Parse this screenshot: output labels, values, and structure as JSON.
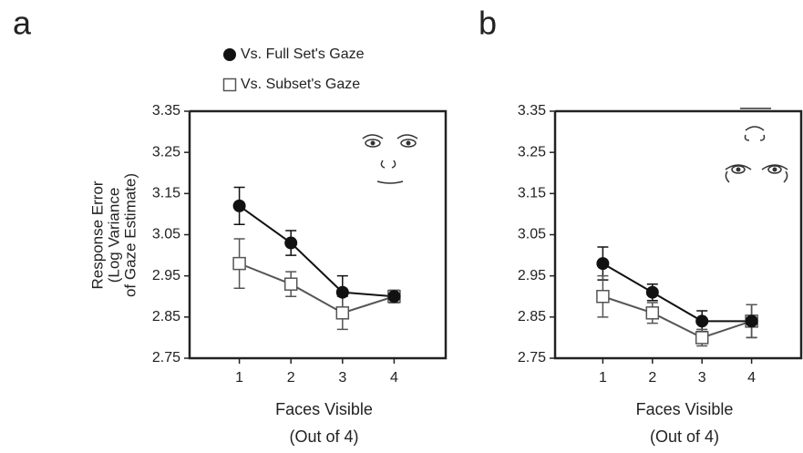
{
  "chart_data": [
    {
      "type": "line",
      "title": "a",
      "ylabel": [
        "Response Error",
        "(Log Variance",
        "of Gaze Estimate)"
      ],
      "xlabel": [
        "Faces Visible",
        "(Out of 4)"
      ],
      "x": [
        1,
        2,
        3,
        4
      ],
      "xlim": [
        0,
        5
      ],
      "xticks": [
        1,
        2,
        3,
        4
      ],
      "ylim": [
        2.75,
        3.35
      ],
      "yticks": [
        2.75,
        2.85,
        2.95,
        3.05,
        3.15,
        3.25,
        3.35
      ],
      "legend": "top-left",
      "series": [
        {
          "name": "Vs. Full Set's Gaze",
          "color": "#111111",
          "marker": "circle",
          "values": [
            3.12,
            3.03,
            2.91,
            2.9
          ],
          "errors": [
            0.045,
            0.03,
            0.04,
            0.015
          ]
        },
        {
          "name": "Vs. Subset's Gaze",
          "color": "#555555",
          "marker": "square",
          "values": [
            2.98,
            2.93,
            2.86,
            2.9
          ],
          "errors": [
            0.06,
            0.03,
            0.04,
            0.015
          ]
        }
      ]
    },
    {
      "type": "line",
      "title": "b",
      "xlabel": [
        "Faces Visible",
        "(Out of 4)"
      ],
      "x": [
        1,
        2,
        3,
        4
      ],
      "xlim": [
        0,
        5
      ],
      "xticks": [
        1,
        2,
        3,
        4
      ],
      "ylim": [
        2.75,
        3.35
      ],
      "yticks": [
        2.75,
        2.85,
        2.95,
        3.05,
        3.15,
        3.25,
        3.35
      ],
      "series": [
        {
          "color": "#111111",
          "marker": "circle",
          "values": [
            2.98,
            2.91,
            2.84,
            2.84
          ],
          "errors": [
            0.04,
            0.02,
            0.025,
            0.04
          ]
        },
        {
          "color": "#555555",
          "marker": "square",
          "values": [
            2.9,
            2.86,
            2.8,
            2.84
          ],
          "errors": [
            0.05,
            0.025,
            0.02,
            0.04
          ]
        }
      ]
    }
  ]
}
